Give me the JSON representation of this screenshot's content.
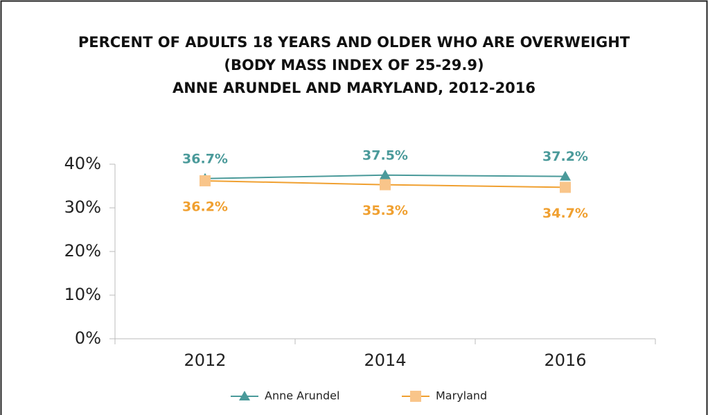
{
  "chart_data": {
    "type": "line",
    "title": [
      "PERCENT OF ADULTS 18 YEARS AND OLDER WHO ARE OVERWEIGHT",
      "(BODY MASS INDEX OF 25-29.9)",
      "ANNE ARUNDEL AND MARYLAND, 2012-2016"
    ],
    "categories": [
      "2012",
      "2014",
      "2016"
    ],
    "series": [
      {
        "name": "Anne Arundel",
        "color": "#4a9a9a",
        "marker": "triangle",
        "values": [
          36.7,
          37.5,
          37.2
        ],
        "value_labels": [
          "36.7%",
          "37.5%",
          "37.2%"
        ]
      },
      {
        "name": "Maryland",
        "color": "#f0a030",
        "marker": "square",
        "values": [
          36.2,
          35.3,
          34.7
        ],
        "value_labels": [
          "36.2%",
          "35.3%",
          "34.7%"
        ]
      }
    ],
    "ylim": [
      0,
      40
    ],
    "yticks": [
      {
        "value": 0,
        "label": "0%"
      },
      {
        "value": 10,
        "label": "10%"
      },
      {
        "value": 20,
        "label": "20%"
      },
      {
        "value": 30,
        "label": "30%"
      },
      {
        "value": 40,
        "label": "40%"
      }
    ],
    "legend": "bottom"
  }
}
